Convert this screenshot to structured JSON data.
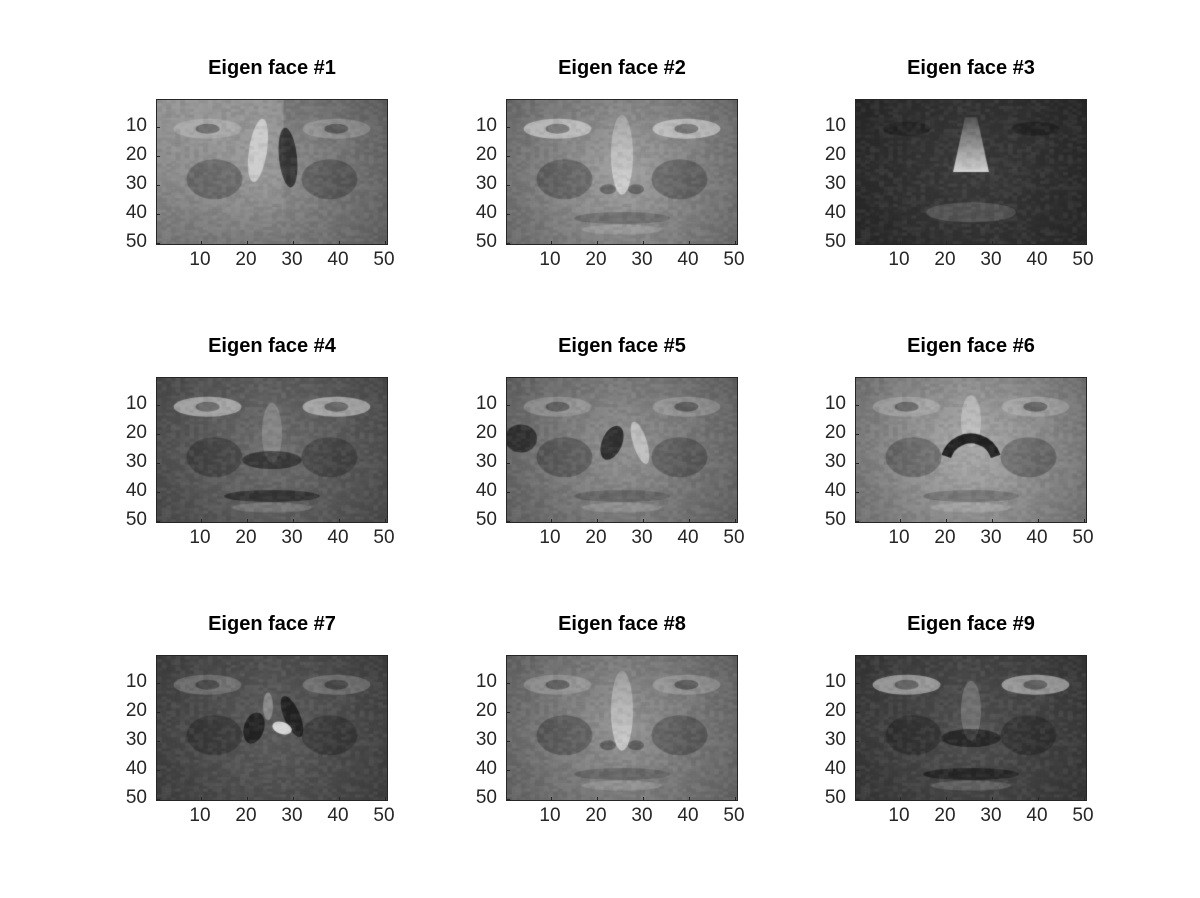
{
  "figure": {
    "panels": [
      {
        "title": "Eigen face #1",
        "look": {
          "bg": "#8a8a8a",
          "eye": 1,
          "nose": "split-dark-right",
          "leftLight": true,
          "mouth": 0
        }
      },
      {
        "title": "Eigen face #2",
        "look": {
          "bg": "#9a9a9a",
          "eye": 2,
          "nose": "bright-bridge",
          "leftLight": false,
          "mouth": 1
        }
      },
      {
        "title": "Eigen face #3",
        "look": {
          "bg": "#3a3a3a",
          "eye": 0,
          "nose": "bright-tip",
          "leftLight": false,
          "mouth": 0
        }
      },
      {
        "title": "Eigen face #4",
        "look": {
          "bg": "#6a6a6a",
          "eye": 2,
          "nose": "dark-nostrils",
          "leftLight": false,
          "mouth": 2
        }
      },
      {
        "title": "Eigen face #5",
        "look": {
          "bg": "#8c8c8c",
          "eye": 1,
          "nose": "split-dark-left",
          "leftLight": false,
          "mouth": 1
        }
      },
      {
        "title": "Eigen face #6",
        "look": {
          "bg": "#a4a4a4",
          "eye": 1,
          "nose": "dark-arc",
          "leftLight": false,
          "mouth": 1
        }
      },
      {
        "title": "Eigen face #7",
        "look": {
          "bg": "#5a5a5a",
          "eye": 1,
          "nose": "dark-sides-bright-tip",
          "leftLight": false,
          "mouth": 0
        }
      },
      {
        "title": "Eigen face #8",
        "look": {
          "bg": "#8e8e8e",
          "eye": 1,
          "nose": "bright-bridge",
          "leftLight": false,
          "mouth": 1
        }
      },
      {
        "title": "Eigen face #9",
        "look": {
          "bg": "#4e4e4e",
          "eye": 2,
          "nose": "dark-nostrils",
          "leftLight": false,
          "mouth": 2
        }
      }
    ],
    "x_ticks": [
      "10",
      "20",
      "30",
      "40",
      "50"
    ],
    "y_ticks": [
      "10",
      "20",
      "30",
      "40",
      "50"
    ],
    "x_tick_values": [
      10,
      20,
      30,
      40,
      50
    ],
    "y_tick_values": [
      10,
      20,
      30,
      40,
      50
    ],
    "x_range": [
      0.5,
      50.5
    ],
    "y_range": [
      0.5,
      50.5
    ]
  }
}
